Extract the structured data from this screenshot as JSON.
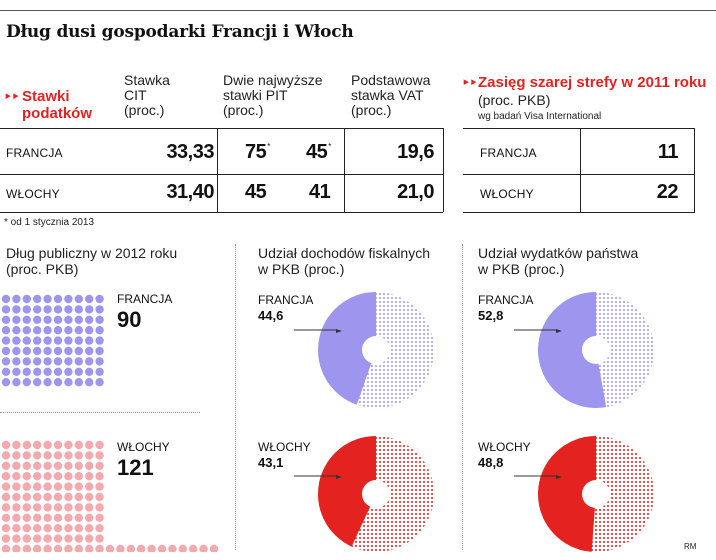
{
  "title": "Dług dusi gospodarki Francji i Włoch",
  "tax_table": {
    "section_label_line1": "Stawki",
    "section_label_line2": "podatków",
    "col_cit": [
      "Stawka",
      "CIT",
      "(proc.)"
    ],
    "col_pit": [
      "Dwie najwyższe",
      "stawki PIT",
      "(proc.)"
    ],
    "col_vat": [
      "Podstawowa",
      "stawka VAT",
      "(proc.)"
    ],
    "rows": [
      {
        "country": "FRANCJA",
        "cit": "33,33",
        "pit1": "75",
        "pit1_mark": "*",
        "pit2": "45",
        "pit2_mark": "*",
        "vat": "19,6"
      },
      {
        "country": "WŁOCHY",
        "cit": "31,40",
        "pit1": "45",
        "pit2": "41",
        "vat": "21,0"
      }
    ],
    "footnote": "* od 1 stycznia 2013"
  },
  "grey_zone": {
    "title": "Zasięg szarej strefy w 2011 roku",
    "unit": "(proc. PKB)",
    "source": "wg badań Visa International",
    "rows": [
      {
        "country": "FRANCJA",
        "value": "11"
      },
      {
        "country": "WŁOCHY",
        "value": "22"
      }
    ]
  },
  "debt": {
    "title_line1": "Dług publiczny w 2012 roku",
    "title_line2": "(proc. PKB)",
    "france": {
      "label": "FRANCJA",
      "value": "90",
      "dots": 90,
      "color": "#9e96ee"
    },
    "italy": {
      "label": "WŁOCHY",
      "value": "121",
      "dots": 121,
      "color": "#f3a9ad"
    }
  },
  "chart_data": [
    {
      "type": "pie",
      "title": "Udział dochodów fiskalnych w PKB (proc.)",
      "title_line1": "Udział dochodów fiskalnych",
      "title_line2": "w PKB (proc.)",
      "series": [
        {
          "name": "FRANCJA",
          "label": "44,6",
          "value": 44.6,
          "color": "#9e96ee"
        },
        {
          "name": "WŁOCHY",
          "label": "43,1",
          "value": 43.1,
          "color": "#e42320"
        }
      ]
    },
    {
      "type": "pie",
      "title": "Udział wydatków państwa w PKB (proc.)",
      "title_line1": "Udział wydatków państwa",
      "title_line2": "w PKB (proc.)",
      "series": [
        {
          "name": "FRANCJA",
          "label": "52,8",
          "value": 52.8,
          "color": "#9e96ee"
        },
        {
          "name": "WŁOCHY",
          "label": "48,8",
          "value": 48.8,
          "color": "#e42320"
        }
      ]
    }
  ],
  "credit": "RM"
}
